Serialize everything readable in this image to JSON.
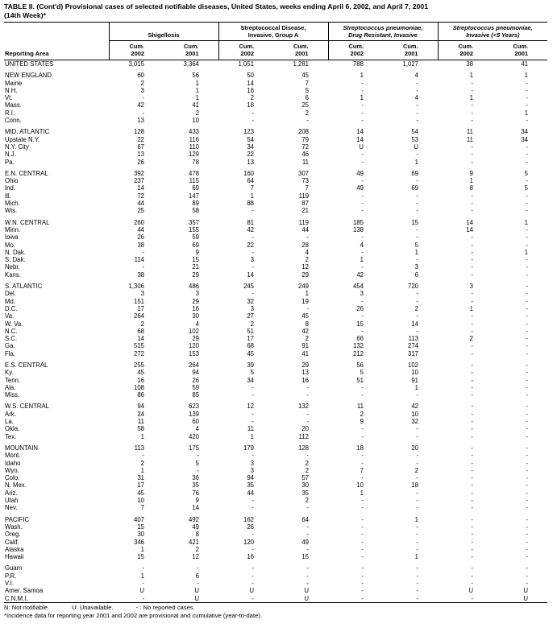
{
  "title": {
    "line1": "TABLE II. (Cont'd) Provisional cases of selected notifiable diseases, United States, weeks ending April 6, 2002, and April 7, 2001",
    "line2": "(14th Week)*"
  },
  "header": {
    "reporting_area": "Reporting Area",
    "groups": [
      {
        "line1": "",
        "line2": "Shigellosis"
      },
      {
        "line1": "Streptococcal Disease,",
        "line2": "Invasive, Group A"
      },
      {
        "line1": "Streptococcus pneumoniae,",
        "line2": "Drug Resistant, Invasive"
      },
      {
        "line1": "Streptococcus pneumoniae,",
        "line2": "Invasive (<5 Years)"
      }
    ],
    "subheaders": [
      {
        "line1": "Cum.",
        "line2": "2002"
      },
      {
        "line1": "Cum.",
        "line2": "2001"
      },
      {
        "line1": "Cum.",
        "line2": "2002"
      },
      {
        "line1": "Cum.",
        "line2": "2001"
      },
      {
        "line1": "Cum.",
        "line2": "2002"
      },
      {
        "line1": "Cum.",
        "line2": "2001"
      },
      {
        "line1": "Cum.",
        "line2": "2002"
      },
      {
        "line1": "Cum.",
        "line2": "2001"
      }
    ]
  },
  "table": {
    "sections": [
      {
        "rows": [
          [
            "UNITED STATES",
            "3,015",
            "3,364",
            "1,051",
            "1,281",
            "788",
            "1,027",
            "38",
            "41"
          ]
        ]
      },
      {
        "rows": [
          [
            "NEW ENGLAND",
            "60",
            "56",
            "50",
            "45",
            "1",
            "4",
            "1",
            "1"
          ],
          [
            "Maine",
            "2",
            "1",
            "14",
            "7",
            "-",
            "-",
            "-",
            "-"
          ],
          [
            "N.H.",
            "3",
            "1",
            "16",
            "5",
            "-",
            "-",
            "-",
            "-"
          ],
          [
            "Vt.",
            "-",
            "1",
            "2",
            "6",
            "1",
            "4",
            "1",
            "-"
          ],
          [
            "Mass.",
            "42",
            "41",
            "18",
            "25",
            "-",
            "-",
            "-",
            "-"
          ],
          [
            "R.I.",
            "-",
            "2",
            "-",
            "2",
            "-",
            "-",
            "-",
            "1"
          ],
          [
            "Conn.",
            "13",
            "10",
            "-",
            "-",
            "-",
            "-",
            "-",
            "-"
          ]
        ]
      },
      {
        "rows": [
          [
            "MID. ATLANTIC",
            "128",
            "433",
            "123",
            "208",
            "14",
            "54",
            "11",
            "34"
          ],
          [
            "Upstate N.Y.",
            "22",
            "116",
            "54",
            "79",
            "14",
            "53",
            "11",
            "34"
          ],
          [
            "N.Y. City",
            "67",
            "110",
            "34",
            "72",
            "U",
            "U",
            "-",
            "-"
          ],
          [
            "N.J.",
            "13",
            "129",
            "22",
            "46",
            "-",
            "-",
            "-",
            "-"
          ],
          [
            "Pa.",
            "26",
            "78",
            "13",
            "11",
            "-",
            "1",
            "-",
            "-"
          ]
        ]
      },
      {
        "rows": [
          [
            "E.N. CENTRAL",
            "392",
            "478",
            "160",
            "307",
            "49",
            "69",
            "9",
            "5"
          ],
          [
            "Ohio",
            "237",
            "115",
            "64",
            "73",
            "-",
            "-",
            "1",
            "-"
          ],
          [
            "Ind.",
            "14",
            "69",
            "7",
            "7",
            "49",
            "69",
            "8",
            "5"
          ],
          [
            "Ill.",
            "72",
            "147",
            "1",
            "119",
            "-",
            "-",
            "-",
            "-"
          ],
          [
            "Mich.",
            "44",
            "89",
            "88",
            "87",
            "-",
            "-",
            "-",
            "-"
          ],
          [
            "Wis.",
            "25",
            "58",
            "-",
            "21",
            "-",
            "-",
            "-",
            "-"
          ]
        ]
      },
      {
        "rows": [
          [
            "W.N. CENTRAL",
            "260",
            "357",
            "81",
            "119",
            "185",
            "15",
            "14",
            "1"
          ],
          [
            "Minn.",
            "44",
            "155",
            "42",
            "44",
            "138",
            "-",
            "14",
            "-"
          ],
          [
            "Iowa",
            "26",
            "59",
            "-",
            "-",
            "-",
            "-",
            "-",
            "-"
          ],
          [
            "Mo.",
            "38",
            "69",
            "22",
            "28",
            "4",
            "5",
            "-",
            "-"
          ],
          [
            "N. Dak.",
            "-",
            "9",
            "-",
            "4",
            "-",
            "1",
            "-",
            "1"
          ],
          [
            "S. Dak.",
            "114",
            "15",
            "3",
            "2",
            "1",
            "-",
            "-",
            "-"
          ],
          [
            "Nebr.",
            "-",
            "21",
            "-",
            "12",
            "-",
            "3",
            "-",
            "-"
          ],
          [
            "Kans.",
            "38",
            "29",
            "14",
            "29",
            "42",
            "6",
            "-",
            "-"
          ]
        ]
      },
      {
        "rows": [
          [
            "S. ATLANTIC",
            "1,306",
            "486",
            "245",
            "249",
            "454",
            "720",
            "3",
            "-"
          ],
          [
            "Del.",
            "3",
            "3",
            "-",
            "1",
            "3",
            "-",
            "-",
            "-"
          ],
          [
            "Md.",
            "151",
            "29",
            "32",
            "19",
            "-",
            "-",
            "-",
            "-"
          ],
          [
            "D.C.",
            "17",
            "16",
            "3",
            "-",
            "26",
            "2",
            "1",
            "-"
          ],
          [
            "Va.",
            "264",
            "30",
            "27",
            "45",
            "-",
            "-",
            "-",
            "-"
          ],
          [
            "W. Va.",
            "2",
            "4",
            "2",
            "8",
            "15",
            "14",
            "-",
            "-"
          ],
          [
            "N.C.",
            "68",
            "102",
            "51",
            "42",
            "-",
            "-",
            "-",
            "-"
          ],
          [
            "S.C.",
            "14",
            "29",
            "17",
            "2",
            "66",
            "113",
            "2",
            "-"
          ],
          [
            "Ga.",
            "515",
            "120",
            "68",
            "91",
            "132",
            "274",
            "-",
            "-"
          ],
          [
            "Fla.",
            "272",
            "153",
            "45",
            "41",
            "212",
            "317",
            "-",
            "-"
          ]
        ]
      },
      {
        "rows": [
          [
            "E.S. CENTRAL",
            "255",
            "264",
            "39",
            "29",
            "56",
            "102",
            "-",
            "-"
          ],
          [
            "Ky.",
            "45",
            "94",
            "5",
            "13",
            "5",
            "10",
            "-",
            "-"
          ],
          [
            "Tenn.",
            "16",
            "26",
            "34",
            "16",
            "51",
            "91",
            "-",
            "-"
          ],
          [
            "Ala.",
            "108",
            "59",
            "-",
            "-",
            "-",
            "1",
            "-",
            "-"
          ],
          [
            "Miss.",
            "86",
            "85",
            "-",
            "-",
            "-",
            "-",
            "-",
            "-"
          ]
        ]
      },
      {
        "rows": [
          [
            "W.S. CENTRAL",
            "94",
            "623",
            "12",
            "132",
            "11",
            "42",
            "-",
            "-"
          ],
          [
            "Ark.",
            "24",
            "139",
            "-",
            "-",
            "2",
            "10",
            "-",
            "-"
          ],
          [
            "La.",
            "11",
            "60",
            "-",
            "-",
            "9",
            "32",
            "-",
            "-"
          ],
          [
            "Okla.",
            "58",
            "4",
            "11",
            "20",
            "-",
            "-",
            "-",
            "-"
          ],
          [
            "Tex.",
            "1",
            "420",
            "1",
            "112",
            "-",
            "-",
            "-",
            "-"
          ]
        ]
      },
      {
        "rows": [
          [
            "MOUNTAIN",
            "113",
            "175",
            "179",
            "128",
            "18",
            "20",
            "-",
            "-"
          ],
          [
            "Mont.",
            "-",
            "-",
            "-",
            "-",
            "-",
            "-",
            "-",
            "-"
          ],
          [
            "Idaho",
            "2",
            "5",
            "3",
            "2",
            "-",
            "-",
            "-",
            "-"
          ],
          [
            "Wyo.",
            "1",
            "-",
            "3",
            "2",
            "7",
            "2",
            "-",
            "-"
          ],
          [
            "Colo.",
            "31",
            "36",
            "94",
            "57",
            "-",
            "-",
            "-",
            "-"
          ],
          [
            "N. Mex.",
            "17",
            "35",
            "35",
            "30",
            "10",
            "18",
            "-",
            "-"
          ],
          [
            "Ariz.",
            "45",
            "76",
            "44",
            "35",
            "1",
            "-",
            "-",
            "-"
          ],
          [
            "Utah",
            "10",
            "9",
            "-",
            "2",
            "-",
            "-",
            "-",
            "-"
          ],
          [
            "Nev.",
            "7",
            "14",
            "-",
            "-",
            "-",
            "-",
            "-",
            "-"
          ]
        ]
      },
      {
        "rows": [
          [
            "PACIFIC",
            "407",
            "492",
            "162",
            "64",
            "-",
            "1",
            "-",
            "-"
          ],
          [
            "Wash.",
            "15",
            "49",
            "26",
            "-",
            "-",
            "-",
            "-",
            "-"
          ],
          [
            "Oreg.",
            "30",
            "8",
            "-",
            "-",
            "-",
            "-",
            "-",
            "-"
          ],
          [
            "Calif.",
            "346",
            "421",
            "120",
            "49",
            "-",
            "-",
            "-",
            "-"
          ],
          [
            "Alaska",
            "1",
            "2",
            "-",
            "-",
            "-",
            "-",
            "-",
            "-"
          ],
          [
            "Hawaii",
            "15",
            "12",
            "16",
            "15",
            "-",
            "1",
            "-",
            "-"
          ]
        ]
      },
      {
        "rows": [
          [
            "Guam",
            "-",
            "-",
            "-",
            "-",
            "-",
            "-",
            "-",
            "-"
          ],
          [
            "P.R.",
            "1",
            "6",
            "-",
            "-",
            "-",
            "-",
            "-",
            "-"
          ],
          [
            "V.I.",
            "-",
            "-",
            "-",
            "-",
            "-",
            "-",
            "-",
            "-"
          ],
          [
            "Amer. Samoa",
            "U",
            "U",
            "U",
            "U",
            "-",
            "-",
            "U",
            "U"
          ],
          [
            "C.N.M.I.",
            "-",
            "U",
            "-",
            "U",
            "-",
            "-",
            "-",
            "U"
          ]
        ]
      }
    ]
  },
  "footnotes": {
    "legend": [
      "N: Not notifiable.",
      "U: Unavailable.",
      "- : No reported cases."
    ],
    "note": "*Incidence data for reporting year 2001 and 2002 are provisional and cumulative (year-to-date)."
  }
}
